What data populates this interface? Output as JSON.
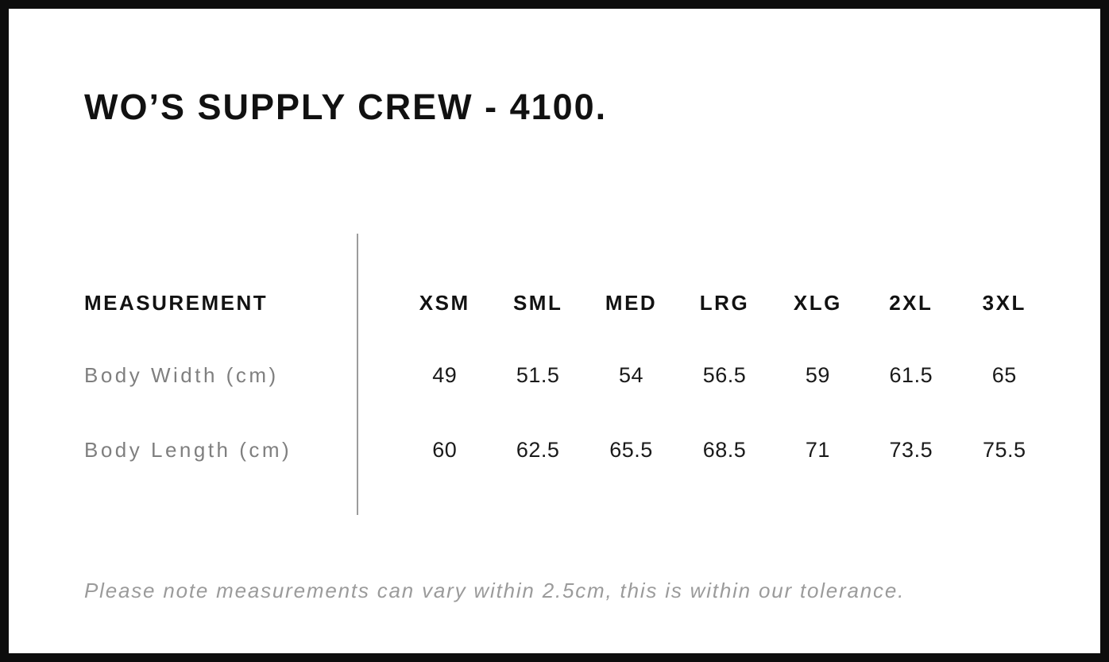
{
  "page": {
    "title": "WO’S SUPPLY CREW - 4100.",
    "note": "Please note measurements can vary within 2.5cm, this is within our tolerance."
  },
  "table": {
    "header_label": "MEASUREMENT",
    "sizes": [
      "XSM",
      "SML",
      "MED",
      "LRG",
      "XLG",
      "2XL",
      "3XL"
    ],
    "rows": [
      {
        "label": "Body Width (cm)",
        "values": [
          "49",
          "51.5",
          "54",
          "56.5",
          "59",
          "61.5",
          "65"
        ]
      },
      {
        "label": "Body Length (cm)",
        "values": [
          "60",
          "62.5",
          "65.5",
          "68.5",
          "71",
          "73.5",
          "75.5"
        ]
      }
    ]
  },
  "colors": {
    "border": "#0d0d0d",
    "heading_text": "#111111",
    "value_text": "#1a1a1a",
    "label_text": "#7f7f7f",
    "divider": "#9c9c9c",
    "note_text": "#9b9b9b",
    "background": "#ffffff"
  }
}
